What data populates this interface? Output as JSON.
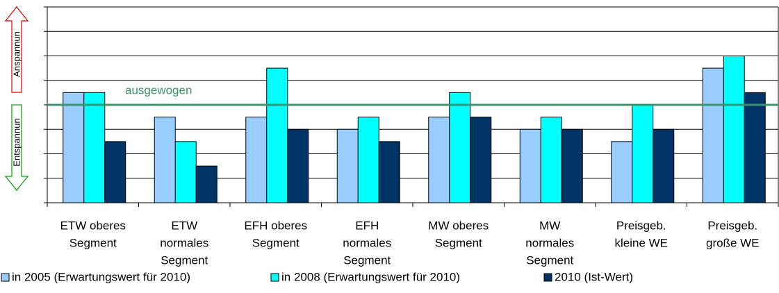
{
  "chart_data": {
    "type": "bar",
    "categories": [
      [
        "ETW oberes",
        "Segment"
      ],
      [
        "ETW",
        "normales",
        "Segment"
      ],
      [
        "EFH oberes",
        "Segment"
      ],
      [
        "EFH",
        "normales",
        "Segment"
      ],
      [
        "MW oberes",
        "Segment"
      ],
      [
        "MW",
        "normales",
        "Segment"
      ],
      [
        "Preisgeb.",
        "kleine WE"
      ],
      [
        "Preisgeb.",
        "große WE"
      ]
    ],
    "series": [
      {
        "name": "in 2005 (Erwartungswert für 2010)",
        "color": "#99ccff",
        "values": [
          4.5,
          3.5,
          3.5,
          3,
          3.5,
          3,
          2.5,
          5.5
        ]
      },
      {
        "name": "in 2008 (Erwartungswert für 2010)",
        "color": "#00ffff",
        "values": [
          4.5,
          2.5,
          5.5,
          3.5,
          4.5,
          3.5,
          4,
          6
        ]
      },
      {
        "name": "2010 (Ist-Wert)",
        "color": "#003366",
        "values": [
          2.5,
          1.5,
          3,
          2.5,
          3.5,
          3,
          3,
          4.5
        ]
      }
    ],
    "ylim": [
      0,
      8
    ],
    "yticks": [
      0,
      1,
      2,
      3,
      4,
      5,
      6,
      7,
      8
    ],
    "grid": true,
    "reference_line": {
      "value": 4,
      "label": "ausgewogen",
      "color": "#339966"
    },
    "arrow_labels": {
      "up": "Anspannun",
      "down": "Entspannun"
    }
  }
}
